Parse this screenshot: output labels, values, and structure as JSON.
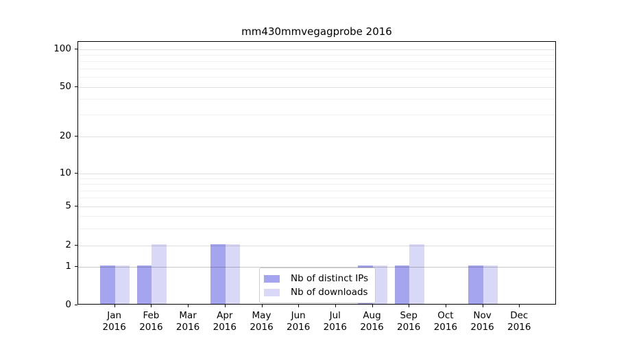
{
  "title": "mm430mmvegagprobe 2016",
  "chart_data": {
    "type": "bar",
    "title": "mm430mmvegagprobe 2016",
    "categories": [
      "Jan",
      "Feb",
      "Mar",
      "Apr",
      "May",
      "Jun",
      "Jul",
      "Aug",
      "Sep",
      "Oct",
      "Nov",
      "Dec"
    ],
    "year_label": "2016",
    "series": [
      {
        "name": "Nb of distinct IPs",
        "color": "#a4a4ef",
        "values": [
          1,
          1,
          0,
          2,
          0,
          0,
          0,
          1,
          1,
          0,
          1,
          0
        ]
      },
      {
        "name": "Nb of downloads",
        "color": "#d9d9f7",
        "values": [
          1,
          2,
          0,
          2,
          0,
          0,
          0,
          1,
          2,
          0,
          1,
          0
        ]
      }
    ],
    "y_axis": {
      "scale": "log-like",
      "ticks": [
        0,
        1,
        2,
        5,
        10,
        20,
        50,
        100
      ],
      "minor_gridlines": [
        3,
        4,
        6,
        7,
        8,
        9,
        30,
        40,
        60,
        70,
        80,
        90
      ],
      "range": [
        0,
        115
      ]
    },
    "x_axis": {
      "tick_label_line2": "2016"
    },
    "grid": true,
    "legend": {
      "position": "lower center",
      "entries": [
        "Nb of distinct IPs",
        "Nb of downloads"
      ]
    }
  }
}
